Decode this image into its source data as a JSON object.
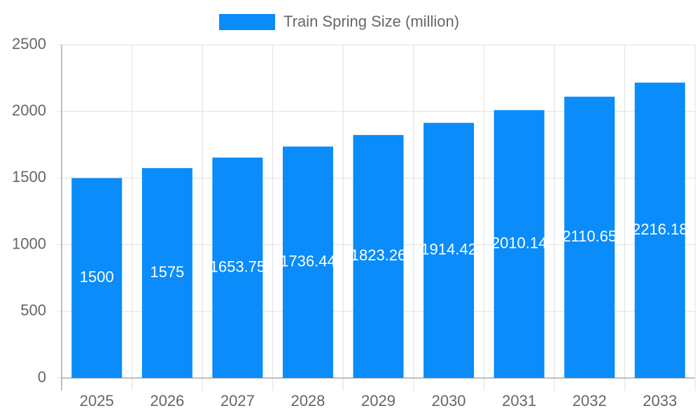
{
  "chart_data": {
    "type": "bar",
    "categories": [
      "2025",
      "2026",
      "2027",
      "2028",
      "2029",
      "2030",
      "2031",
      "2032",
      "2033"
    ],
    "series": [
      {
        "name": "Train Spring Size (million)",
        "color": "#0a8cfa",
        "values": [
          1500,
          1575,
          1653.75,
          1736.44,
          1823.26,
          1914.42,
          2010.14,
          2110.65,
          2216.18
        ]
      }
    ],
    "ylim": [
      0,
      2500
    ],
    "yticks": [
      0,
      500,
      1000,
      1500,
      2000,
      2500
    ],
    "grid": true
  }
}
